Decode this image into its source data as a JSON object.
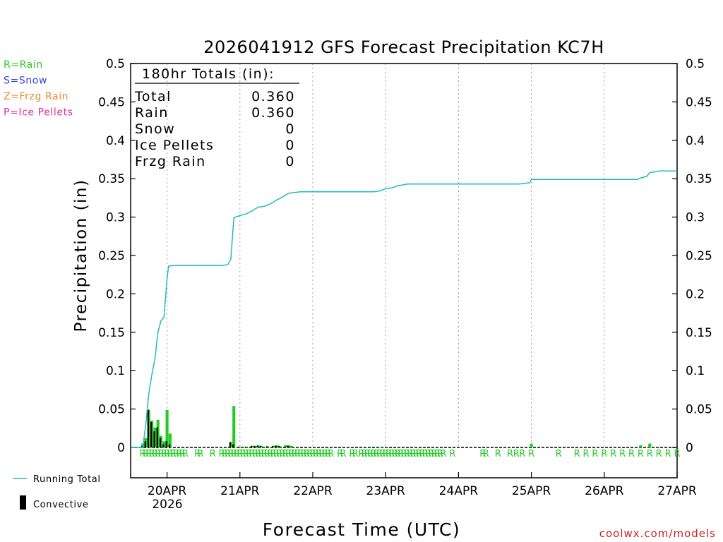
{
  "chart_data": {
    "type": "bar",
    "title": "2026041912 GFS Forecast Precipitation KC7H",
    "xlabel": "Forecast Time (UTC)",
    "ylabel": "Precipitation (in)",
    "ylim": [
      0,
      0.5
    ],
    "yticks": [
      "0",
      "0.05",
      "0.1",
      "0.15",
      "0.2",
      "0.25",
      "0.3",
      "0.35",
      "0.4",
      "0.45",
      "0.5"
    ],
    "xlim_hours": [
      0,
      180
    ],
    "xticks": [
      {
        "label": "20APR",
        "hour": 12
      },
      {
        "label": "21APR",
        "hour": 36
      },
      {
        "label": "22APR",
        "hour": 60
      },
      {
        "label": "23APR",
        "hour": 84
      },
      {
        "label": "24APR",
        "hour": 108
      },
      {
        "label": "25APR",
        "hour": 132
      },
      {
        "label": "26APR",
        "hour": 156
      },
      {
        "label": "27APR",
        "hour": 180
      }
    ],
    "year_label": "2026",
    "precip_type_legend": [
      {
        "text": "R=Rain",
        "color": "#22cc22"
      },
      {
        "text": "S=Snow",
        "color": "#3344dd"
      },
      {
        "text": "Z=Frzg Rain",
        "color": "#ee8833"
      },
      {
        "text": "P=Ice Pellets",
        "color": "#dd3399"
      }
    ],
    "totals": {
      "header": "180hr Totals (in):",
      "rows": [
        {
          "label": "Total",
          "value": "0.360"
        },
        {
          "label": "Rain",
          "value": "0.360"
        },
        {
          "label": "Snow",
          "value": "0"
        },
        {
          "label": "Ice Pellets",
          "value": "0"
        },
        {
          "label": "Frzg Rain",
          "value": "0"
        }
      ]
    },
    "series_legend": [
      {
        "name": "Running Total",
        "color": "#22bbbb"
      },
      {
        "name": "Convective",
        "color": "#000000"
      }
    ],
    "rain_marker": "R",
    "rain_marker_color": "#22cc22",
    "rain_marks_hours": [
      4,
      5,
      6,
      7,
      8,
      9,
      10,
      11,
      12,
      13,
      14,
      15,
      16,
      17,
      18,
      22,
      23,
      27,
      30,
      31,
      32,
      33,
      34,
      35,
      36,
      37,
      38,
      39,
      40,
      41,
      42,
      43,
      44,
      45,
      46,
      47,
      48,
      49,
      50,
      51,
      52,
      53,
      54,
      55,
      56,
      57,
      58,
      59,
      60,
      61,
      62,
      63,
      64,
      65,
      66,
      69,
      70,
      73,
      74,
      76,
      77,
      78,
      79,
      80,
      81,
      82,
      83,
      84,
      85,
      86,
      87,
      88,
      89,
      90,
      91,
      92,
      93,
      94,
      95,
      96,
      97,
      98,
      99,
      100,
      101,
      102,
      103,
      106,
      116,
      117,
      121,
      125,
      127,
      129,
      132,
      141,
      147,
      150,
      153,
      156,
      159,
      162,
      165,
      168,
      171,
      174,
      177,
      180
    ],
    "precip_bars": [
      {
        "hour": 4,
        "total": 0.005,
        "convective": 0.002
      },
      {
        "hour": 5,
        "total": 0.012,
        "convective": 0.008
      },
      {
        "hour": 6,
        "total": 0.049,
        "convective": 0.049
      },
      {
        "hour": 7,
        "total": 0.035,
        "convective": 0.033
      },
      {
        "hour": 8,
        "total": 0.026,
        "convective": 0.021
      },
      {
        "hour": 9,
        "total": 0.036,
        "convective": 0.026
      },
      {
        "hour": 10,
        "total": 0.015,
        "convective": 0.012
      },
      {
        "hour": 11,
        "total": 0.008,
        "convective": 0.004
      },
      {
        "hour": 12,
        "total": 0.049,
        "convective": 0.008
      },
      {
        "hour": 13,
        "total": 0.018,
        "convective": 0.004
      },
      {
        "hour": 33,
        "total": 0.007,
        "convective": 0.007
      },
      {
        "hour": 34,
        "total": 0.054,
        "convective": 0.004
      },
      {
        "hour": 36,
        "total": 0.001,
        "convective": 0.001
      },
      {
        "hour": 38,
        "total": 0.001,
        "convective": 0.001
      },
      {
        "hour": 40,
        "total": 0.002,
        "convective": 0.002
      },
      {
        "hour": 41,
        "total": 0.002,
        "convective": 0.002
      },
      {
        "hour": 42,
        "total": 0.003,
        "convective": 0.002
      },
      {
        "hour": 43,
        "total": 0.002,
        "convective": 0.002
      },
      {
        "hour": 45,
        "total": 0.002,
        "convective": 0.001
      },
      {
        "hour": 47,
        "total": 0.002,
        "convective": 0.002
      },
      {
        "hour": 48,
        "total": 0.003,
        "convective": 0.002
      },
      {
        "hour": 49,
        "total": 0.002,
        "convective": 0.002
      },
      {
        "hour": 51,
        "total": 0.003,
        "convective": 0.001
      },
      {
        "hour": 52,
        "total": 0.003,
        "convective": 0.002
      },
      {
        "hour": 53,
        "total": 0.002,
        "convective": 0.001
      },
      {
        "hour": 83,
        "total": 0.001,
        "convective": 0
      },
      {
        "hour": 132,
        "total": 0.005,
        "convective": 0
      },
      {
        "hour": 168,
        "total": 0.003,
        "convective": 0
      },
      {
        "hour": 171,
        "total": 0.005,
        "convective": 0
      },
      {
        "hour": 174,
        "total": 0.001,
        "convective": 0
      }
    ],
    "running_total": [
      [
        0,
        0
      ],
      [
        4,
        0
      ],
      [
        5,
        0.03
      ],
      [
        6,
        0.07
      ],
      [
        7,
        0.095
      ],
      [
        8,
        0.115
      ],
      [
        9,
        0.15
      ],
      [
        10,
        0.165
      ],
      [
        11,
        0.17
      ],
      [
        12,
        0.22
      ],
      [
        12.5,
        0.236
      ],
      [
        14,
        0.237
      ],
      [
        18,
        0.237
      ],
      [
        24,
        0.237
      ],
      [
        30,
        0.237
      ],
      [
        32,
        0.238
      ],
      [
        33,
        0.245
      ],
      [
        34,
        0.299
      ],
      [
        36,
        0.302
      ],
      [
        38,
        0.304
      ],
      [
        40,
        0.308
      ],
      [
        42,
        0.313
      ],
      [
        44,
        0.314
      ],
      [
        46,
        0.317
      ],
      [
        48,
        0.322
      ],
      [
        50,
        0.326
      ],
      [
        52,
        0.331
      ],
      [
        54,
        0.332
      ],
      [
        56,
        0.333
      ],
      [
        58,
        0.333
      ],
      [
        60,
        0.333
      ],
      [
        70,
        0.333
      ],
      [
        80,
        0.333
      ],
      [
        82,
        0.334
      ],
      [
        84,
        0.337
      ],
      [
        86,
        0.338
      ],
      [
        88,
        0.341
      ],
      [
        90,
        0.342
      ],
      [
        91,
        0.343
      ],
      [
        100,
        0.343
      ],
      [
        110,
        0.343
      ],
      [
        120,
        0.343
      ],
      [
        128,
        0.343
      ],
      [
        130,
        0.344
      ],
      [
        131.5,
        0.345
      ],
      [
        132,
        0.349
      ],
      [
        140,
        0.349
      ],
      [
        150,
        0.349
      ],
      [
        160,
        0.349
      ],
      [
        167,
        0.349
      ],
      [
        168,
        0.351
      ],
      [
        170,
        0.353
      ],
      [
        171,
        0.358
      ],
      [
        173,
        0.359
      ],
      [
        174,
        0.36
      ],
      [
        180,
        0.36
      ]
    ],
    "credit": "coolwx.com/models"
  }
}
